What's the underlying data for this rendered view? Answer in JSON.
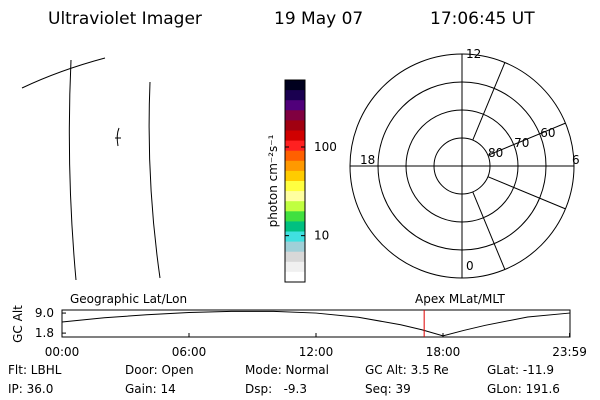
{
  "header": {
    "title": "Ultraviolet Imager",
    "date": "19 May 07",
    "time": "17:06:45 UT"
  },
  "colorbar": {
    "label": "photon cm⁻²s⁻¹",
    "log": true,
    "lim": [
      3,
      570
    ],
    "ticks": [
      10,
      100
    ],
    "colors": [
      "#00001e",
      "#1a0050",
      "#50007a",
      "#800040",
      "#a00010",
      "#d00000",
      "#ff2020",
      "#ff6000",
      "#ff9900",
      "#ffcc00",
      "#ffff40",
      "#ffffa0",
      "#c0ff40",
      "#40e040",
      "#00c080",
      "#40e0e0",
      "#a0d0d8",
      "#d8d8d8",
      "#f0f0f0",
      "#ffffff"
    ]
  },
  "polar": {
    "rlim": [
      90,
      50
    ],
    "rticks": [
      80,
      70,
      60
    ],
    "hour_ticks": [
      12,
      18,
      6,
      0
    ]
  },
  "chart_data": {
    "type": "line",
    "title": "Geographic Lat/Lon",
    "subtitle": "Apex MLat/MLT",
    "ylabel": "GC Alt",
    "x": [
      0,
      2,
      4,
      6,
      8,
      10,
      12,
      14,
      16,
      17,
      18,
      19,
      20,
      22,
      23.98
    ],
    "values": [
      5.8,
      7.3,
      8.4,
      9.2,
      9.6,
      9.6,
      9.0,
      7.5,
      4.8,
      3.0,
      0.8,
      2.8,
      4.6,
      7.6,
      9.0
    ],
    "color": "#000000",
    "xlim": [
      0,
      24
    ],
    "ylim": [
      0.4,
      10.1
    ],
    "xticks": [
      {
        "value": 0,
        "label": "00:00"
      },
      {
        "value": 6,
        "label": "06:00"
      },
      {
        "value": 12,
        "label": "12:00"
      },
      {
        "value": 18,
        "label": "18:00"
      },
      {
        "value": 23.98,
        "label": "23:59"
      }
    ],
    "yticks": [
      {
        "value": 9.0,
        "label": "9.0"
      },
      {
        "value": 1.8,
        "label": "1.8"
      }
    ],
    "vline": 17.11,
    "vline_color": "#e00000"
  },
  "info": [
    [
      "Flt: LBHL",
      "IP: 36.0"
    ],
    [
      "Door: Open",
      "Gain: 14"
    ],
    [
      "Mode: Normal",
      "Dsp:   -9.3"
    ],
    [
      "GC Alt: 3.5 Re",
      "Seq: 39"
    ],
    [
      "GLat: -11.9",
      "GLon: 191.6"
    ]
  ]
}
